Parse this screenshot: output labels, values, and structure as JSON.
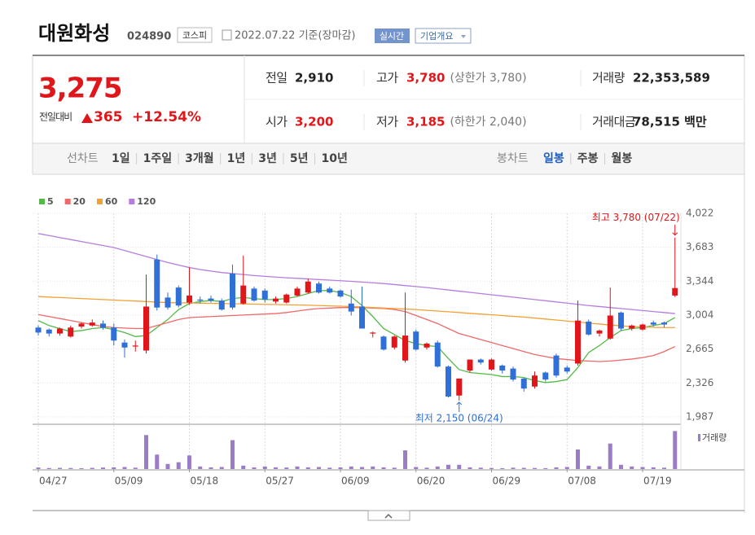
{
  "header": {
    "name": "대원화성",
    "code": "024890",
    "market": "코스피",
    "date": "2022.07.22 기준(장마감)",
    "realtime": "실시간",
    "overview": "기업개요"
  },
  "quote": {
    "price": "3,275",
    "change_label": "전일대비",
    "change": "365",
    "change_pct": "+12.54%",
    "color": "#e0161a"
  },
  "summary": [
    [
      {
        "label": "전일",
        "value": "2,910"
      },
      {
        "label": "고가",
        "value": "3,780",
        "note": "(상한가 3,780)",
        "color": "#e0161a"
      },
      {
        "label": "거래량",
        "value": "22,353,589"
      }
    ],
    [
      {
        "label": "시가",
        "value": "3,200",
        "color": "#e0161a"
      },
      {
        "label": "저가",
        "value": "3,185",
        "note": "(하한가 2,040)",
        "color": "#e0161a"
      },
      {
        "label": "거래대금",
        "value": "78,515 백만"
      }
    ]
  ],
  "tabs": {
    "line_label": "선차트",
    "line": [
      "1일",
      "1주일",
      "3개월",
      "1년",
      "3년",
      "5년",
      "10년"
    ],
    "candle_label": "봉차트",
    "candle": [
      "일봉",
      "주봉",
      "월봉"
    ],
    "active_candle": 0
  },
  "chart_data": {
    "type": "candlestick",
    "categories": [
      "04/27",
      null,
      null,
      null,
      null,
      null,
      null,
      "05/09",
      null,
      null,
      null,
      null,
      null,
      null,
      "05/18",
      null,
      null,
      null,
      null,
      null,
      null,
      "05/27",
      null,
      null,
      null,
      null,
      null,
      null,
      "06/09",
      null,
      null,
      null,
      null,
      null,
      null,
      "06/20",
      null,
      null,
      null,
      null,
      null,
      null,
      "06/29",
      null,
      null,
      null,
      null,
      null,
      null,
      "07/08",
      null,
      null,
      null,
      null,
      null,
      null,
      "07/19",
      null,
      null,
      null
    ],
    "open": [
      2880,
      2860,
      2820,
      2790,
      2890,
      2900,
      2920,
      2880,
      2730,
      2690,
      2650,
      3560,
      3180,
      3280,
      3130,
      3160,
      3170,
      3150,
      3420,
      3120,
      3270,
      3250,
      3140,
      3130,
      3200,
      3230,
      3320,
      3270,
      3250,
      3120,
      3090,
      2820,
      2790,
      2680,
      2550,
      2840,
      2680,
      2730,
      2490,
      2200,
      2450,
      2560,
      2460,
      2500,
      2470,
      2370,
      2290,
      2430,
      2600,
      2480,
      2520,
      2940,
      2820,
      2770,
      3030,
      2870,
      2860,
      2930,
      2930,
      3200
    ],
    "high": [
      2900,
      2870,
      2880,
      2900,
      2930,
      2960,
      2950,
      2920,
      2760,
      2750,
      3410,
      3610,
      3230,
      3300,
      3480,
      3190,
      3200,
      3170,
      3510,
      3600,
      3290,
      3270,
      3190,
      3220,
      3290,
      3370,
      3340,
      3290,
      3260,
      3260,
      3290,
      2840,
      2800,
      2800,
      3230,
      2860,
      2730,
      2750,
      2500,
      2370,
      2560,
      2570,
      2570,
      2510,
      2490,
      2380,
      2440,
      2440,
      2620,
      2500,
      3150,
      2960,
      2860,
      3280,
      3040,
      2910,
      2920,
      2950,
      2940,
      3780
    ],
    "low": [
      2800,
      2790,
      2800,
      2780,
      2870,
      2890,
      2860,
      2700,
      2580,
      2640,
      2620,
      3050,
      3060,
      3080,
      3110,
      3120,
      3130,
      3050,
      3060,
      3110,
      3140,
      3130,
      3120,
      3120,
      3190,
      3220,
      3220,
      3220,
      3180,
      3000,
      2870,
      2780,
      2650,
      2660,
      2530,
      2650,
      2660,
      2480,
      2180,
      2150,
      2430,
      2510,
      2450,
      2420,
      2340,
      2240,
      2270,
      2340,
      2380,
      2420,
      2500,
      2800,
      2790,
      2760,
      2850,
      2850,
      2850,
      2890,
      2880,
      3185
    ],
    "close": [
      2830,
      2820,
      2870,
      2880,
      2920,
      2930,
      2880,
      2750,
      2680,
      2700,
      3090,
      3080,
      3080,
      3100,
      3200,
      3150,
      3150,
      3060,
      3080,
      3300,
      3150,
      3160,
      3170,
      3210,
      3270,
      3340,
      3230,
      3230,
      3190,
      3040,
      2870,
      2830,
      2660,
      2790,
      2800,
      2660,
      2720,
      2490,
      2190,
      2370,
      2560,
      2530,
      2560,
      2450,
      2360,
      2270,
      2400,
      2360,
      2400,
      2440,
      2950,
      2810,
      2850,
      3000,
      2870,
      2900,
      2910,
      2910,
      2910,
      3275
    ],
    "up_color": "#e0161a",
    "down_color": "#2f6fd8",
    "ylim": [
      1913,
      4022
    ],
    "yticks": [
      {
        "value": 4022,
        "label": "4,022"
      },
      {
        "value": 3683,
        "label": "3,683"
      },
      {
        "value": 3344,
        "label": "3,344"
      },
      {
        "value": 3004,
        "label": "3,004"
      },
      {
        "value": 2665,
        "label": "2,665"
      },
      {
        "value": 2326,
        "label": "2,326"
      },
      {
        "value": 1987,
        "label": "1,987"
      }
    ],
    "grid": true,
    "moving_averages": [
      {
        "name": "5",
        "color": "#54b948",
        "values": [
          2950,
          2900,
          2870,
          2840,
          2850,
          2870,
          2880,
          2860,
          2830,
          2790,
          2800,
          2880,
          2960,
          3060,
          3120,
          3140,
          3150,
          3140,
          3170,
          3180,
          3170,
          3160,
          3160,
          3170,
          3190,
          3220,
          3250,
          3250,
          3230,
          3190,
          3100,
          2990,
          2870,
          2810,
          2750,
          2720,
          2700,
          2690,
          2570,
          2460,
          2430,
          2420,
          2410,
          2390,
          2390,
          2380,
          2350,
          2330,
          2340,
          2360,
          2480,
          2630,
          2700,
          2780,
          2850,
          2870,
          2880,
          2900,
          2920,
          2980
        ]
      },
      {
        "name": "20",
        "color": "#f06868",
        "values": [
          3010,
          2990,
          2970,
          2950,
          2930,
          2910,
          2890,
          2880,
          2875,
          2870,
          2870,
          2900,
          2930,
          2960,
          2980,
          2985,
          2990,
          2995,
          3000,
          3005,
          3010,
          3015,
          3020,
          3030,
          3045,
          3060,
          3070,
          3075,
          3080,
          3080,
          3080,
          3075,
          3070,
          3060,
          3040,
          3000,
          2960,
          2920,
          2870,
          2820,
          2790,
          2760,
          2730,
          2700,
          2670,
          2640,
          2610,
          2590,
          2570,
          2560,
          2550,
          2545,
          2540,
          2545,
          2555,
          2565,
          2580,
          2600,
          2640,
          2690
        ]
      },
      {
        "name": "60",
        "color": "#f5a035",
        "values": [
          3190,
          3185,
          3180,
          3175,
          3170,
          3165,
          3160,
          3155,
          3150,
          3145,
          3140,
          3135,
          3130,
          3128,
          3126,
          3124,
          3122,
          3120,
          3118,
          3116,
          3114,
          3112,
          3110,
          3108,
          3106,
          3104,
          3100,
          3097,
          3094,
          3090,
          3085,
          3080,
          3075,
          3070,
          3065,
          3060,
          3052,
          3045,
          3038,
          3030,
          3022,
          3015,
          3008,
          3000,
          2992,
          2985,
          2975,
          2965,
          2955,
          2945,
          2935,
          2925,
          2915,
          2905,
          2897,
          2890,
          2885,
          2882,
          2880,
          2880
        ]
      },
      {
        "name": "120",
        "color": "#b47ee0",
        "values": [
          3820,
          3800,
          3780,
          3760,
          3740,
          3720,
          3700,
          3680,
          3650,
          3620,
          3590,
          3560,
          3530,
          3505,
          3480,
          3460,
          3445,
          3430,
          3420,
          3410,
          3400,
          3392,
          3385,
          3378,
          3372,
          3366,
          3360,
          3354,
          3348,
          3342,
          3335,
          3328,
          3320,
          3310,
          3300,
          3290,
          3280,
          3268,
          3256,
          3244,
          3232,
          3220,
          3208,
          3196,
          3184,
          3172,
          3160,
          3148,
          3136,
          3124,
          3112,
          3100,
          3090,
          3080,
          3070,
          3060,
          3050,
          3040,
          3030,
          3020
        ]
      }
    ],
    "annotations": {
      "high": "최고 3,780 (07/22)",
      "low": "최저 2,150 (06/24)"
    },
    "volume": {
      "label": "거래량",
      "color": "#9b7cc6",
      "ylim": [
        0,
        23000000
      ],
      "values": [
        900000,
        600000,
        700000,
        600000,
        500000,
        700000,
        900000,
        1000000,
        1200000,
        800000,
        20000000,
        8500000,
        3000000,
        4000000,
        8000000,
        1500000,
        1000000,
        1200000,
        17000000,
        2000000,
        1000000,
        1500000,
        1000000,
        900000,
        1500000,
        1000000,
        1200000,
        800000,
        1000000,
        1500000,
        1200000,
        1500000,
        1000000,
        800000,
        11000000,
        1200000,
        800000,
        1500000,
        2500000,
        2500000,
        1000000,
        800000,
        600000,
        500000,
        800000,
        700000,
        600000,
        500000,
        1000000,
        1200000,
        11500000,
        2000000,
        1500000,
        15000000,
        2500000,
        1500000,
        1200000,
        1000000,
        800000,
        22353589
      ]
    }
  }
}
